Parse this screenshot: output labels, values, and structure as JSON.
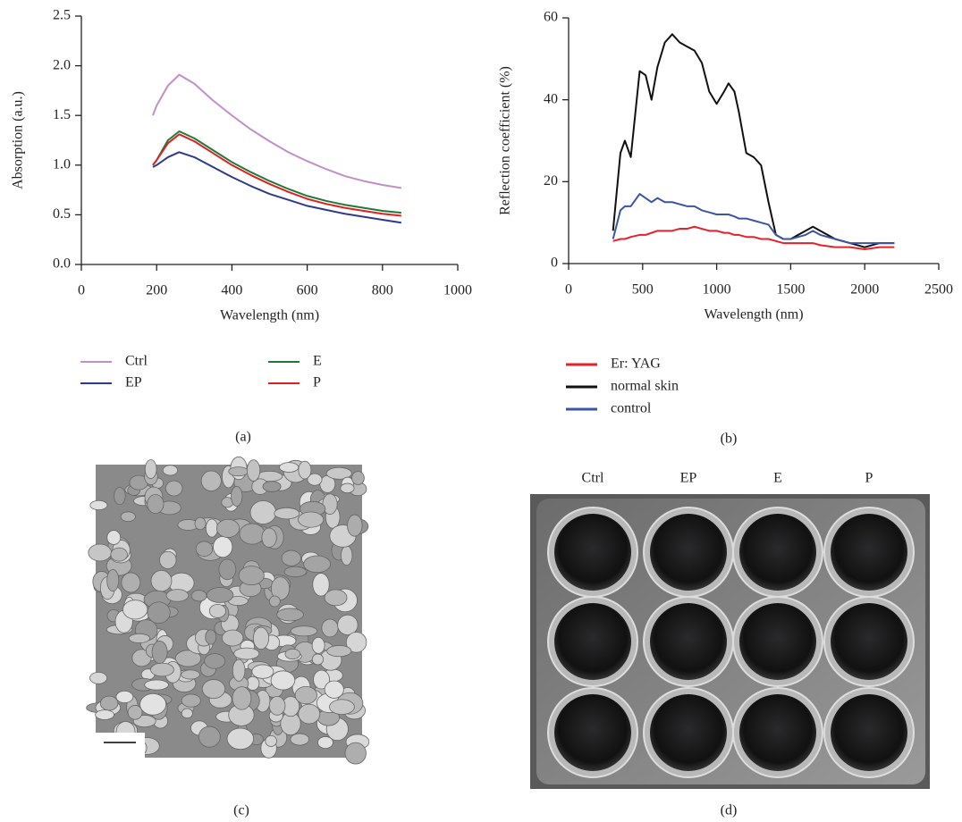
{
  "chart_data": [
    {
      "type": "line",
      "xlabel": "Wavelength (nm)",
      "ylabel": "Absorption (a.u.)",
      "xlim": [
        0,
        1000
      ],
      "xticks": [
        0,
        200,
        400,
        600,
        800,
        1000
      ],
      "ylim": [
        0,
        2.5
      ],
      "yticks": [
        {
          "value": 0,
          "label": "0.0"
        },
        0.5,
        {
          "value": 1,
          "label": "1.0"
        },
        1.5,
        {
          "value": 2,
          "label": "2.0"
        },
        2.5
      ],
      "x": [
        190,
        200,
        230,
        260,
        300,
        350,
        400,
        450,
        500,
        550,
        600,
        650,
        700,
        750,
        800,
        850
      ],
      "series": [
        {
          "name": "Ctrl",
          "color": "#c08fc8",
          "values": [
            1.5,
            1.6,
            1.8,
            1.91,
            1.82,
            1.65,
            1.5,
            1.36,
            1.24,
            1.13,
            1.04,
            0.96,
            0.89,
            0.84,
            0.8,
            0.77
          ]
        },
        {
          "name": "EP",
          "color": "#2e3b8c",
          "values": [
            0.98,
            1.0,
            1.08,
            1.13,
            1.08,
            0.98,
            0.88,
            0.79,
            0.71,
            0.65,
            0.59,
            0.55,
            0.51,
            0.48,
            0.45,
            0.42
          ]
        },
        {
          "name": "E",
          "color": "#1f7a3a",
          "values": [
            1.0,
            1.05,
            1.25,
            1.34,
            1.27,
            1.15,
            1.03,
            0.93,
            0.84,
            0.76,
            0.69,
            0.64,
            0.6,
            0.57,
            0.54,
            0.52
          ]
        },
        {
          "name": "P",
          "color": "#e02020",
          "values": [
            1.0,
            1.05,
            1.22,
            1.31,
            1.24,
            1.12,
            1.0,
            0.9,
            0.81,
            0.73,
            0.66,
            0.61,
            0.57,
            0.54,
            0.51,
            0.49
          ]
        }
      ]
    },
    {
      "type": "line",
      "xlabel": "Wavelength (nm)",
      "ylabel": "Reflection coefficient (%)",
      "xlim": [
        0,
        2500
      ],
      "xticks": [
        0,
        500,
        1000,
        1500,
        2000,
        2500
      ],
      "ylim": [
        0,
        60
      ],
      "yticks": [
        0,
        20,
        40,
        60
      ],
      "x": [
        300,
        350,
        380,
        420,
        480,
        520,
        560,
        600,
        650,
        700,
        750,
        800,
        850,
        900,
        950,
        1000,
        1050,
        1080,
        1120,
        1150,
        1200,
        1250,
        1300,
        1350,
        1400,
        1450,
        1500,
        1600,
        1650,
        1700,
        1800,
        1900,
        2000,
        2100,
        2200
      ],
      "series": [
        {
          "name": "Er: YAG",
          "color": "#e8202a",
          "values": [
            5.5,
            6,
            6,
            6.5,
            7,
            7,
            7.5,
            8,
            8,
            8,
            8.5,
            8.5,
            9,
            8.5,
            8,
            8,
            7.5,
            7.5,
            7,
            7,
            6.5,
            6.5,
            6,
            6,
            5.5,
            5,
            5,
            5,
            5,
            4.5,
            4,
            4,
            3.5,
            4,
            4
          ]
        },
        {
          "name": "normal skin",
          "color": "#111111",
          "values": [
            8,
            27,
            30,
            26,
            47,
            46,
            40,
            48,
            54,
            56,
            54,
            53,
            52,
            49,
            42,
            39,
            42,
            44,
            42,
            37,
            27,
            26,
            24,
            15,
            7,
            6,
            6,
            8,
            9,
            8,
            6,
            5,
            4,
            5,
            5
          ]
        },
        {
          "name": "control",
          "color": "#3a55a4",
          "values": [
            6,
            13,
            14,
            14,
            17,
            16,
            15,
            16,
            15,
            15,
            14.5,
            14,
            14,
            13,
            12.5,
            12,
            12,
            12,
            11.5,
            11,
            11,
            10.5,
            10,
            9.5,
            7,
            6,
            6,
            7,
            8,
            7,
            6,
            5,
            5,
            5,
            5
          ]
        }
      ]
    }
  ],
  "panel_labels": [
    "(a)",
    "(b)",
    "(c)",
    "(d)"
  ],
  "plate_columns": [
    "Ctrl",
    "EP",
    "E",
    "P"
  ]
}
